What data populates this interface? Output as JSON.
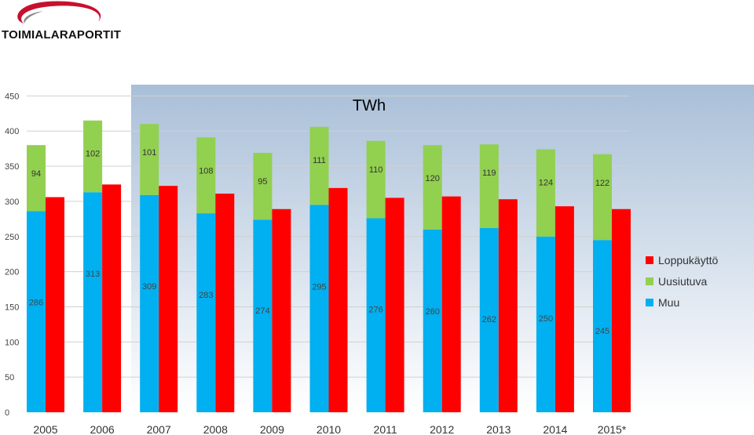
{
  "brand": {
    "name": "TOIMIALARAPORTIT",
    "colors": {
      "swoosh": "#c8102e",
      "swoosh_grey": "#8c8c8c"
    }
  },
  "chart_data": {
    "type": "bar",
    "title": "TWh",
    "xlabel": "",
    "ylabel": "",
    "ylim": [
      0,
      450
    ],
    "yticks": [
      0,
      50,
      100,
      150,
      200,
      250,
      300,
      350,
      400,
      450
    ],
    "grid": true,
    "legend_position": "right",
    "categories": [
      "2005",
      "2006",
      "2007",
      "2008",
      "2009",
      "2010",
      "2011",
      "2012",
      "2013",
      "2014",
      "2015*"
    ],
    "series": [
      {
        "name": "Muu",
        "color": "#00b0f0",
        "stack": "supply",
        "values": [
          286,
          313,
          309,
          283,
          274,
          295,
          276,
          260,
          262,
          250,
          245
        ]
      },
      {
        "name": "Uusiutuva",
        "color": "#92d050",
        "stack": "supply",
        "values": [
          94,
          102,
          101,
          108,
          95,
          111,
          110,
          120,
          119,
          124,
          122
        ]
      },
      {
        "name": "Loppukäyttö",
        "color": "#ff0000",
        "stack": "consumption",
        "values": [
          306,
          324,
          322,
          311,
          289,
          319,
          305,
          307,
          303,
          293,
          289
        ]
      }
    ],
    "legend": [
      "Loppukäyttö",
      "Uusiutuva",
      "Muu"
    ],
    "colors": {
      "plot_gradient_top": "#a9bfd8",
      "plot_gradient_bottom": "#ffffff"
    }
  }
}
